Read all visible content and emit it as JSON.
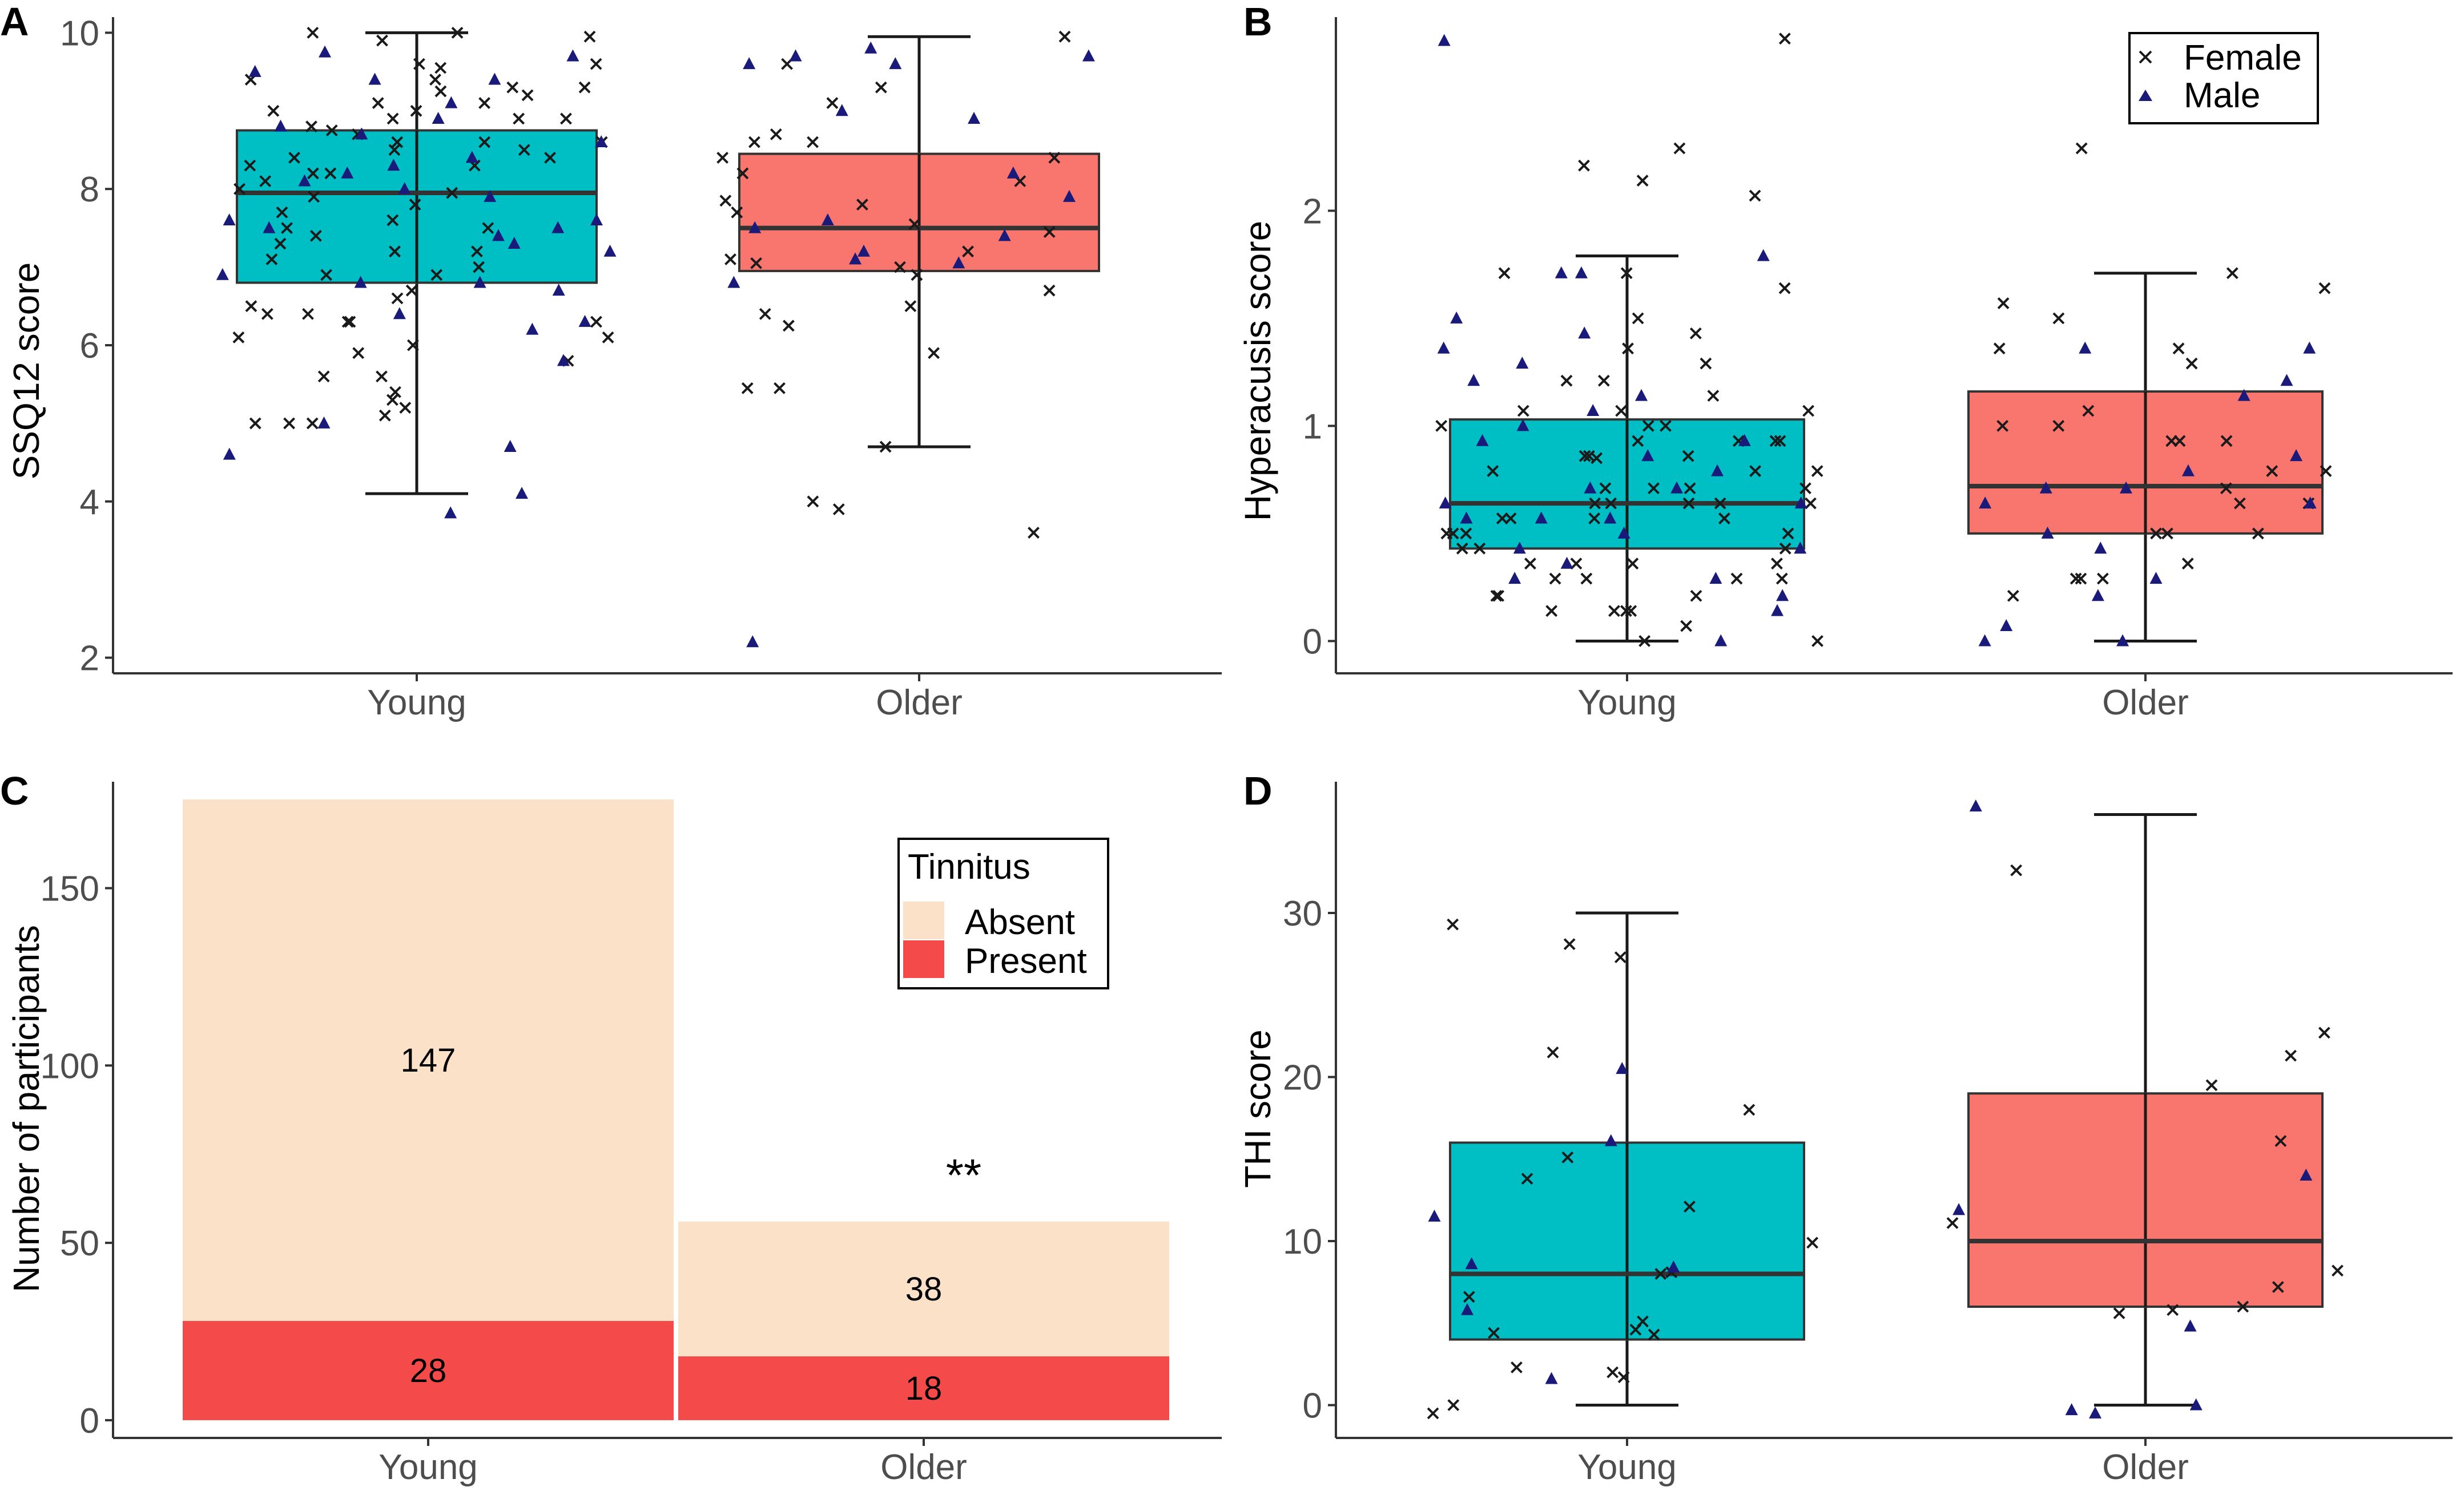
{
  "figure": {
    "panel_labels": [
      "A",
      "B",
      "C",
      "D"
    ],
    "colors": {
      "young": "#00BFC4",
      "older": "#F8766D",
      "female_marker": "#1a1a1a",
      "male_marker": "#1a1a7a",
      "tinnitus_absent": "#FAE1C8",
      "tinnitus_present": "#F54A4A"
    },
    "legend_sex": {
      "female": "Female",
      "male": "Male"
    },
    "legend_tinnitus": {
      "title": "Tinnitus",
      "absent": "Absent",
      "present": "Present"
    },
    "significance": "**"
  },
  "chart_data": [
    {
      "id": "A",
      "type": "box",
      "ylabel": "SSQ12 score",
      "xlabel": "",
      "categories": [
        "Young",
        "Older"
      ],
      "ylim": [
        1.8,
        10.2
      ],
      "yticks": [
        2,
        4,
        6,
        8,
        10
      ],
      "boxes": [
        {
          "group": "Young",
          "min": 4.1,
          "q1": 6.8,
          "median": 7.95,
          "q3": 8.75,
          "max": 10.0
        },
        {
          "group": "Older",
          "min": 4.7,
          "q1": 6.95,
          "median": 7.5,
          "q3": 8.45,
          "max": 9.95
        }
      ],
      "points": [
        {
          "group": "Young",
          "female": [
            6.0,
            9.25,
            8.1,
            7.4,
            8.5,
            9.6,
            9.4,
            8.9,
            7.95,
            5.6,
            8.75,
            9.2,
            7.0,
            8.3,
            9.0,
            5.0,
            8.6,
            7.7,
            9.55,
            6.7,
            5.0,
            8.0,
            9.95,
            8.6,
            6.4,
            7.2,
            6.3,
            8.4,
            5.1,
            6.9,
            9.1,
            8.2,
            7.5,
            6.1,
            5.4,
            8.8,
            9.4,
            6.3,
            7.3,
            8.5,
            5.9,
            8.7,
            6.5,
            9.3,
            7.9,
            5.8,
            5.2,
            10.0,
            10.0,
            9.1,
            8.9,
            7.2,
            9.0,
            6.4,
            8.6,
            5.0,
            6.1,
            9.9,
            7.5,
            8.3,
            9.6,
            6.3,
            5.3,
            7.8,
            7.6,
            8.4,
            6.6,
            8.9,
            5.6,
            8.2,
            9.3,
            7.1,
            6.9
          ],
          "male": [
            4.1,
            7.5,
            8.6,
            6.3,
            6.7,
            7.3,
            8.4,
            8.9,
            7.6,
            8.2,
            6.8,
            8.1,
            9.4,
            7.9,
            4.7,
            9.75,
            7.6,
            6.9,
            8.7,
            3.85,
            8.3,
            9.5,
            7.2,
            6.4,
            5.8,
            9.1,
            8.0,
            7.5,
            6.2,
            9.7,
            5.0,
            4.6,
            8.8,
            7.4,
            9.4,
            6.8
          ]
        },
        {
          "group": "Older",
          "female": [
            9.95,
            8.6,
            6.7,
            6.25,
            7.7,
            8.6,
            7.1,
            5.9,
            7.45,
            8.4,
            5.45,
            6.9,
            8.2,
            9.1,
            7.55,
            5.45,
            7.8,
            4.0,
            3.9,
            3.6,
            8.7,
            9.6,
            8.4,
            7.2,
            7.05,
            9.3,
            6.4,
            6.5,
            4.7,
            7.85,
            8.1,
            7.0
          ],
          "male": [
            8.2,
            7.1,
            9.7,
            7.4,
            8.9,
            7.6,
            7.2,
            2.2,
            7.9,
            7.5,
            9.6,
            9.7,
            9.0,
            6.8,
            7.05,
            9.6,
            9.8
          ]
        }
      ]
    },
    {
      "id": "B",
      "type": "box",
      "ylabel": "Hyperacusis score",
      "xlabel": "",
      "categories": [
        "Young",
        "Older"
      ],
      "ylim": [
        -0.15,
        2.9
      ],
      "yticks": [
        0,
        1,
        2
      ],
      "boxes": [
        {
          "group": "Young",
          "min": 0.0,
          "q1": 0.43,
          "median": 0.64,
          "q3": 1.03,
          "max": 1.79
        },
        {
          "group": "Older",
          "min": 0.0,
          "q1": 0.5,
          "median": 0.72,
          "q3": 1.16,
          "max": 1.71
        }
      ],
      "points": [
        {
          "group": "Young",
          "female": [
            2.14,
            1.64,
            1.5,
            0.85,
            0.43,
            0.29,
            0.71,
            1.71,
            2.8,
            0.21,
            0.64,
            1.07,
            0.36,
            0.57,
            0.14,
            1.29,
            0.93,
            0.5,
            0.0,
            0.79,
            2.29,
            2.07,
            1.21,
            0.43,
            0.64,
            1.0,
            0.07,
            0.86,
            0.57,
            0.29,
            1.36,
            0.71,
            0.93,
            1.14,
            0.5,
            0.36,
            0.14,
            0.0,
            0.64,
            0.79,
            1.43,
            0.21,
            0.57,
            0.93,
            0.29,
            1.0,
            0.71,
            0.36,
            0.5,
            2.21,
            1.71,
            0.86,
            1.07,
            0.64,
            0.14,
            0.43,
            1.0,
            0.29,
            0.79,
            0.57,
            1.21,
            0.64,
            0.93,
            0.71,
            0.5,
            0.21,
            1.07,
            0.36,
            0.86,
            0.14
          ],
          "male": [
            1.71,
            1.36,
            1.5,
            0.0,
            0.57,
            0.86,
            0.21,
            1.21,
            0.71,
            0.43,
            1.43,
            0.64,
            0.93,
            0.29,
            1.79,
            2.79,
            1.14,
            0.57,
            0.36,
            1.0,
            0.79,
            0.5,
            1.29,
            0.71,
            0.14,
            0.64,
            1.71,
            0.43,
            0.93,
            1.07,
            0.57,
            0.29
          ]
        },
        {
          "group": "Older",
          "female": [
            1.57,
            1.71,
            0.93,
            0.79,
            1.0,
            1.07,
            0.29,
            0.21,
            0.64,
            1.29,
            0.5,
            0.71,
            1.5,
            1.36,
            1.0,
            0.93,
            1.64,
            0.36,
            0.29,
            2.29,
            0.5,
            0.93,
            1.36,
            0.29,
            0.79,
            0.64,
            0.5
          ],
          "male": [
            0.29,
            0.79,
            0.43,
            0.64,
            0.07,
            0.21,
            1.36,
            1.14,
            0.64,
            0.71,
            1.21,
            0.0,
            0.0,
            0.86,
            1.36,
            0.5,
            0.71
          ]
        }
      ]
    },
    {
      "id": "C",
      "type": "bar",
      "stacked": true,
      "ylabel": "Number of participants",
      "xlabel": "",
      "categories": [
        "Young",
        "Older"
      ],
      "ylim": [
        -5,
        180
      ],
      "yticks": [
        0,
        50,
        100,
        150
      ],
      "series": [
        {
          "name": "Present",
          "values": [
            28,
            18
          ]
        },
        {
          "name": "Absent",
          "values": [
            147,
            38
          ]
        }
      ],
      "legend_title": "Tinnitus",
      "legend_position": "top-right",
      "annotation": "**"
    },
    {
      "id": "D",
      "type": "box",
      "ylabel": "THI score",
      "xlabel": "",
      "categories": [
        "Young",
        "Older"
      ],
      "ylim": [
        -2,
        38
      ],
      "yticks": [
        0,
        10,
        20,
        30
      ],
      "boxes": [
        {
          "group": "Young",
          "min": 0,
          "q1": 4,
          "median": 8,
          "q3": 16,
          "max": 30
        },
        {
          "group": "Older",
          "min": 0,
          "q1": 6,
          "median": 10,
          "q3": 19,
          "max": 36
        }
      ],
      "points": [
        {
          "group": "Young",
          "female": [
            29.3,
            28.1,
            15.1,
            9.9,
            18.0,
            8.1,
            5.1,
            0.0,
            2.0,
            4.4,
            27.3,
            21.5,
            13.8,
            4.6,
            4.3,
            2.3,
            8.0,
            12.1,
            1.7,
            6.6,
            -0.5
          ],
          "male": [
            20.5,
            16.1,
            11.5,
            8.4,
            8.6,
            5.8,
            1.6
          ]
        },
        {
          "group": "Older",
          "female": [
            5.6,
            19.5,
            22.7,
            21.3,
            32.6,
            11.1,
            7.2,
            8.2,
            16.1,
            6.0,
            5.8
          ],
          "male": [
            14.0,
            11.9,
            -0.3,
            4.8,
            36.5,
            0.0,
            -0.5
          ]
        }
      ]
    }
  ]
}
